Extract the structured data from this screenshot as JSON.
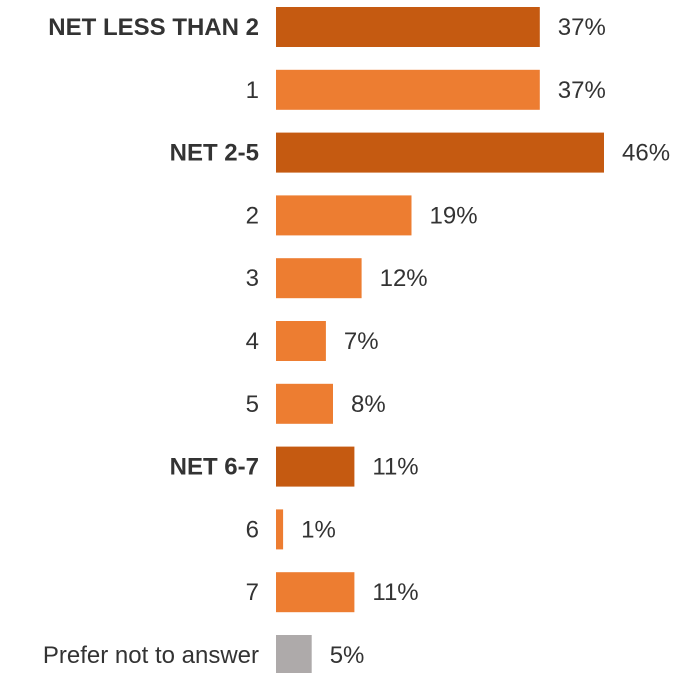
{
  "chart_data": {
    "type": "bar",
    "orientation": "horizontal",
    "title": "",
    "xlabel": "",
    "ylabel": "",
    "xlim": [
      0,
      46
    ],
    "grid": false,
    "categories": [
      "NET LESS THAN 2",
      "1",
      "NET 2-5",
      "2",
      "3",
      "4",
      "5",
      "NET 6-7",
      "6",
      "7",
      "Prefer not to answer"
    ],
    "values": [
      37,
      37,
      46,
      19,
      12,
      7,
      8,
      11,
      1,
      11,
      5
    ],
    "value_labels": [
      "37%",
      "37%",
      "46%",
      "19%",
      "12%",
      "7%",
      "8%",
      "11%",
      "1%",
      "11%",
      "5%"
    ],
    "is_net": [
      true,
      false,
      true,
      false,
      false,
      false,
      false,
      true,
      false,
      false,
      false
    ],
    "bar_colors": [
      "#C55A11",
      "#ED7D31",
      "#C55A11",
      "#ED7D31",
      "#ED7D31",
      "#ED7D31",
      "#ED7D31",
      "#C55A11",
      "#ED7D31",
      "#ED7D31",
      "#AEAAAA"
    ]
  }
}
